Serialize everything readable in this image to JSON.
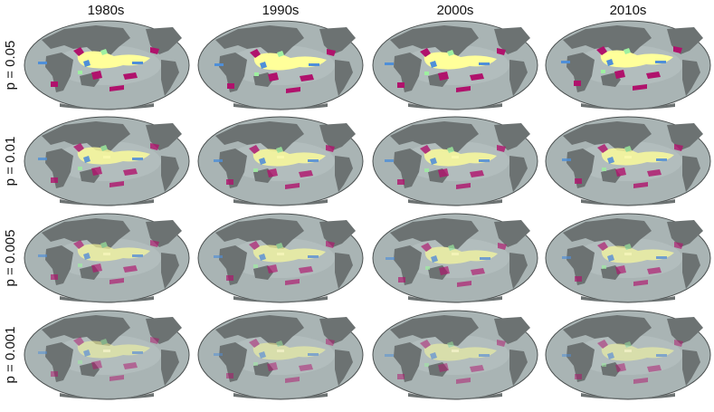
{
  "columns": [
    "1980s",
    "1990s",
    "2000s",
    "2010s"
  ],
  "rows": [
    "p = 0.05",
    "p = 0.01",
    "p = 0.005",
    "p = 0.001"
  ]
}
